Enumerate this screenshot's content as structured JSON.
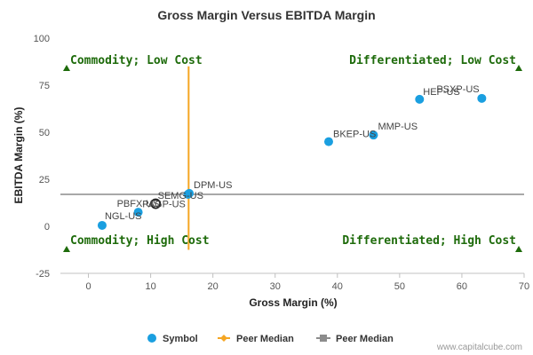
{
  "chart_data": {
    "type": "scatter",
    "title": "Gross Margin Versus EBITDA Margin",
    "xlabel": "Gross Margin (%)",
    "ylabel": "EBITDA Margin (%)",
    "xlim": [
      -4.5,
      70
    ],
    "ylim": [
      -25,
      100
    ],
    "xticks": [
      0,
      10,
      20,
      30,
      40,
      50,
      60,
      70
    ],
    "yticks": [
      -25,
      0,
      25,
      50,
      75,
      100
    ],
    "grid": false,
    "legend_position": "bottom",
    "series": [
      {
        "name": "Symbol",
        "color": "#1a9fe0",
        "points": [
          {
            "label": "NGL-US",
            "x": 2.2,
            "y": 0.5
          },
          {
            "label": "PBFX-US",
            "x": 8.0,
            "y": 7.5
          },
          {
            "label": "SEMG-US",
            "x": 16.0,
            "y": 17.0
          },
          {
            "label": "DPM-US",
            "x": 16.2,
            "y": 17.5
          },
          {
            "label": "BKEP-US",
            "x": 38.6,
            "y": 45.0
          },
          {
            "label": "MMP-US",
            "x": 45.8,
            "y": 48.5
          },
          {
            "label": "HEP-US",
            "x": 53.2,
            "y": 67.5
          },
          {
            "label": "PSXP-US",
            "x": 63.2,
            "y": 68.0
          }
        ],
        "highlight": {
          "label": "PAGP-US",
          "x": 10.8,
          "y": 12.0
        }
      },
      {
        "name": "Peer Median",
        "color": "#f5a623",
        "orientation": "vertical",
        "x": 16.1,
        "y_range": [
          -12.5,
          85
        ]
      },
      {
        "name": "Peer Median",
        "color": "#8c8c8c",
        "orientation": "horizontal",
        "y": 17.0,
        "x_range": [
          -4.5,
          70
        ]
      }
    ],
    "quadrants": {
      "top_left": "Commodity; Low Cost",
      "top_right": "Differentiated; Low Cost",
      "bottom_left": "Commodity; High Cost",
      "bottom_right": "Differentiated; High Cost",
      "color": "#1e6b0b"
    },
    "watermark": "www.capitalcube.com"
  }
}
